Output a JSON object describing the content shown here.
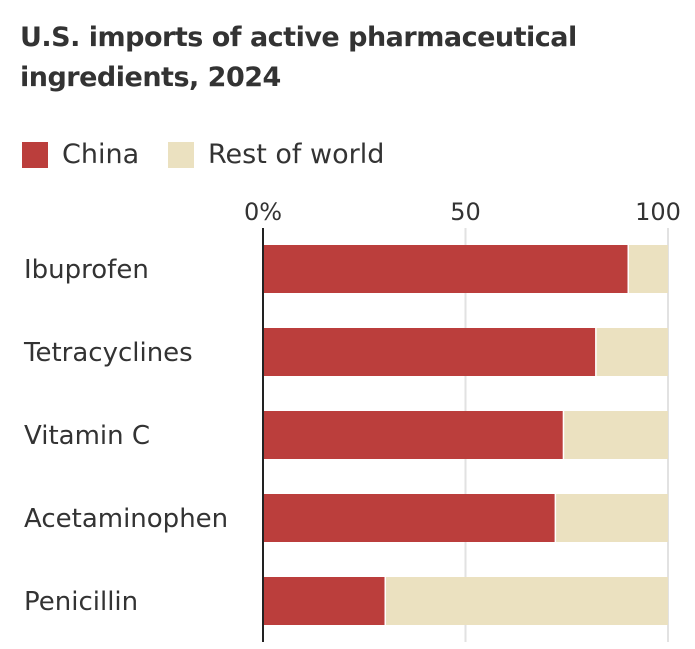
{
  "chart_data": {
    "type": "bar",
    "stacked": true,
    "orientation": "horizontal",
    "title": "U.S. imports of active pharmaceutical ingredients, 2024",
    "categories": [
      "Ibuprofen",
      "Tetracyclines",
      "Vitamin C",
      "Acetaminophen",
      "Penicillin"
    ],
    "series": [
      {
        "name": "China",
        "color": "#bb3e3c",
        "values": [
          90,
          82,
          74,
          72,
          30
        ]
      },
      {
        "name": "Rest of world",
        "color": "#ebe1c0",
        "values": [
          10,
          18,
          26,
          28,
          70
        ]
      }
    ],
    "xlim": [
      0,
      100
    ],
    "xticks": [
      0,
      50,
      100
    ],
    "xtick_labels": [
      "0%",
      "50",
      "100"
    ],
    "grid": true,
    "legend": "top-left"
  }
}
